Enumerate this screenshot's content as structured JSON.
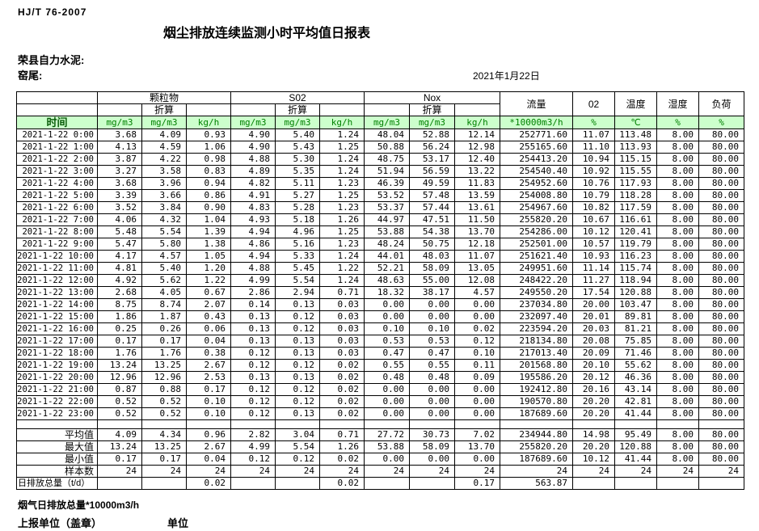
{
  "meta": {
    "standard": "HJ/T  76-2007",
    "title": "烟尘排放连续监测小时平均值日报表",
    "company": "荣县自力水泥:",
    "station": "窑尾:",
    "date": "2021年1月22日"
  },
  "colors": {
    "header_bg": "#ccffcc",
    "header_text": "#008000"
  },
  "table": {
    "time_header": "时间",
    "conversion_label": "折算",
    "groups": [
      "颗粒物",
      "S02",
      "Nox"
    ],
    "flow_header": "流量",
    "o2_header": "02",
    "temperature_header": "温度",
    "humidity_header": "湿度",
    "load_header": "负荷",
    "units": [
      "mg/m3",
      "mg/m3",
      "kg/h",
      "mg/m3",
      "mg/m3",
      "kg/h",
      "mg/m3",
      "mg/m3",
      "kg/h",
      "*10000m3/h",
      "%",
      "℃",
      "%",
      "%"
    ],
    "rows": [
      {
        "time": "2021-1-22  0:00",
        "values": [
          "3.68",
          "4.09",
          "0.93",
          "4.90",
          "5.40",
          "1.24",
          "48.04",
          "52.88",
          "12.14",
          "252771.60",
          "11.07",
          "113.48",
          "8.00",
          "80.00"
        ]
      },
      {
        "time": "2021-1-22  1:00",
        "values": [
          "4.13",
          "4.59",
          "1.06",
          "4.90",
          "5.43",
          "1.25",
          "50.88",
          "56.24",
          "12.98",
          "255165.60",
          "11.10",
          "113.93",
          "8.00",
          "80.00"
        ]
      },
      {
        "time": "2021-1-22  2:00",
        "values": [
          "3.87",
          "4.22",
          "0.98",
          "4.88",
          "5.30",
          "1.24",
          "48.75",
          "53.17",
          "12.40",
          "254413.20",
          "10.94",
          "115.15",
          "8.00",
          "80.00"
        ]
      },
      {
        "time": "2021-1-22  3:00",
        "values": [
          "3.27",
          "3.58",
          "0.83",
          "4.89",
          "5.35",
          "1.24",
          "51.94",
          "56.59",
          "13.22",
          "254540.40",
          "10.92",
          "115.55",
          "8.00",
          "80.00"
        ]
      },
      {
        "time": "2021-1-22  4:00",
        "values": [
          "3.68",
          "3.96",
          "0.94",
          "4.82",
          "5.11",
          "1.23",
          "46.39",
          "49.59",
          "11.83",
          "254952.60",
          "10.76",
          "117.93",
          "8.00",
          "80.00"
        ]
      },
      {
        "time": "2021-1-22  5:00",
        "values": [
          "3.39",
          "3.66",
          "0.86",
          "4.91",
          "5.27",
          "1.25",
          "53.52",
          "57.48",
          "13.59",
          "254008.80",
          "10.79",
          "118.28",
          "8.00",
          "80.00"
        ]
      },
      {
        "time": "2021-1-22  6:00",
        "values": [
          "3.52",
          "3.84",
          "0.90",
          "4.83",
          "5.28",
          "1.23",
          "53.37",
          "57.44",
          "13.61",
          "254967.60",
          "10.82",
          "117.59",
          "8.00",
          "80.00"
        ]
      },
      {
        "time": "2021-1-22  7:00",
        "values": [
          "4.06",
          "4.32",
          "1.04",
          "4.93",
          "5.18",
          "1.26",
          "44.97",
          "47.51",
          "11.50",
          "255820.20",
          "10.67",
          "116.61",
          "8.00",
          "80.00"
        ]
      },
      {
        "time": "2021-1-22  8:00",
        "values": [
          "5.48",
          "5.54",
          "1.39",
          "4.94",
          "4.96",
          "1.25",
          "53.88",
          "54.38",
          "13.70",
          "254286.00",
          "10.12",
          "120.41",
          "8.00",
          "80.00"
        ]
      },
      {
        "time": "2021-1-22  9:00",
        "values": [
          "5.47",
          "5.80",
          "1.38",
          "4.86",
          "5.16",
          "1.23",
          "48.24",
          "50.75",
          "12.18",
          "252501.00",
          "10.57",
          "119.79",
          "8.00",
          "80.00"
        ]
      },
      {
        "time": "2021-1-22 10:00",
        "values": [
          "4.17",
          "4.57",
          "1.05",
          "4.94",
          "5.33",
          "1.24",
          "44.01",
          "48.03",
          "11.07",
          "251621.40",
          "10.93",
          "116.23",
          "8.00",
          "80.00"
        ]
      },
      {
        "time": "2021-1-22 11:00",
        "values": [
          "4.81",
          "5.40",
          "1.20",
          "4.88",
          "5.45",
          "1.22",
          "52.21",
          "58.09",
          "13.05",
          "249951.60",
          "11.14",
          "115.74",
          "8.00",
          "80.00"
        ]
      },
      {
        "time": "2021-1-22 12:00",
        "values": [
          "4.92",
          "5.62",
          "1.22",
          "4.99",
          "5.54",
          "1.24",
          "48.63",
          "55.00",
          "12.08",
          "248422.20",
          "11.27",
          "118.94",
          "8.00",
          "80.00"
        ]
      },
      {
        "time": "2021-1-22 13:00",
        "values": [
          "2.68",
          "4.05",
          "0.67",
          "2.86",
          "2.94",
          "0.71",
          "18.32",
          "38.17",
          "4.57",
          "249550.20",
          "17.54",
          "120.88",
          "8.00",
          "80.00"
        ]
      },
      {
        "time": "2021-1-22 14:00",
        "values": [
          "8.75",
          "8.74",
          "2.07",
          "0.14",
          "0.13",
          "0.03",
          "0.00",
          "0.00",
          "0.00",
          "237034.80",
          "20.00",
          "103.47",
          "8.00",
          "80.00"
        ]
      },
      {
        "time": "2021-1-22 15:00",
        "values": [
          "1.86",
          "1.87",
          "0.43",
          "0.13",
          "0.12",
          "0.03",
          "0.00",
          "0.00",
          "0.00",
          "232097.40",
          "20.01",
          "89.81",
          "8.00",
          "80.00"
        ]
      },
      {
        "time": "2021-1-22 16:00",
        "values": [
          "0.25",
          "0.26",
          "0.06",
          "0.13",
          "0.12",
          "0.03",
          "0.10",
          "0.10",
          "0.02",
          "223594.20",
          "20.03",
          "81.21",
          "8.00",
          "80.00"
        ]
      },
      {
        "time": "2021-1-22 17:00",
        "values": [
          "0.17",
          "0.17",
          "0.04",
          "0.13",
          "0.13",
          "0.03",
          "0.53",
          "0.53",
          "0.12",
          "218134.80",
          "20.08",
          "75.85",
          "8.00",
          "80.00"
        ]
      },
      {
        "time": "2021-1-22 18:00",
        "values": [
          "1.76",
          "1.76",
          "0.38",
          "0.12",
          "0.13",
          "0.03",
          "0.47",
          "0.47",
          "0.10",
          "217013.40",
          "20.09",
          "71.46",
          "8.00",
          "80.00"
        ]
      },
      {
        "time": "2021-1-22 19:00",
        "values": [
          "13.24",
          "13.25",
          "2.67",
          "0.12",
          "0.12",
          "0.02",
          "0.55",
          "0.55",
          "0.11",
          "201568.80",
          "20.10",
          "55.62",
          "8.00",
          "80.00"
        ]
      },
      {
        "time": "2021-1-22 20:00",
        "values": [
          "12.96",
          "12.96",
          "2.53",
          "0.13",
          "0.13",
          "0.02",
          "0.48",
          "0.48",
          "0.09",
          "195586.20",
          "20.12",
          "46.36",
          "8.00",
          "80.00"
        ]
      },
      {
        "time": "2021-1-22 21:00",
        "values": [
          "0.87",
          "0.88",
          "0.17",
          "0.12",
          "0.12",
          "0.02",
          "0.00",
          "0.00",
          "0.00",
          "192412.80",
          "20.16",
          "43.14",
          "8.00",
          "80.00"
        ]
      },
      {
        "time": "2021-1-22 22:00",
        "values": [
          "0.52",
          "0.52",
          "0.10",
          "0.12",
          "0.12",
          "0.02",
          "0.00",
          "0.00",
          "0.00",
          "190570.80",
          "20.20",
          "42.81",
          "8.00",
          "80.00"
        ]
      },
      {
        "time": "2021-1-22 23:00",
        "values": [
          "0.52",
          "0.52",
          "0.10",
          "0.12",
          "0.13",
          "0.02",
          "0.00",
          "0.00",
          "0.00",
          "187689.60",
          "20.20",
          "41.44",
          "8.00",
          "80.00"
        ]
      }
    ],
    "summary": [
      {
        "label": "平均值",
        "values": [
          "4.09",
          "4.34",
          "0.96",
          "2.82",
          "3.04",
          "0.71",
          "27.72",
          "30.73",
          "7.02",
          "234944.80",
          "14.98",
          "95.49",
          "8.00",
          "80.00"
        ]
      },
      {
        "label": "最大值",
        "values": [
          "13.24",
          "13.25",
          "2.67",
          "4.99",
          "5.54",
          "1.26",
          "53.88",
          "58.09",
          "13.70",
          "255820.20",
          "20.20",
          "120.88",
          "8.00",
          "80.00"
        ]
      },
      {
        "label": "最小值",
        "values": [
          "0.17",
          "0.17",
          "0.04",
          "0.12",
          "0.12",
          "0.02",
          "0.00",
          "0.00",
          "0.00",
          "187689.60",
          "10.12",
          "41.44",
          "8.00",
          "80.00"
        ]
      },
      {
        "label": "样本数",
        "values": [
          "24",
          "24",
          "24",
          "24",
          "24",
          "24",
          "24",
          "24",
          "24",
          "24",
          "24",
          "24",
          "24",
          "24"
        ]
      },
      {
        "label": "日排放总量（t/d）",
        "values": [
          "",
          "",
          "0.02",
          "",
          "",
          "0.02",
          "",
          "",
          "0.17",
          "563.87",
          "",
          "",
          "",
          ""
        ]
      }
    ]
  },
  "footer": {
    "flue_total": "烟气日排放总量*10000m3/h",
    "report_unit": "上报单位（盖章）",
    "unit": "单位"
  }
}
